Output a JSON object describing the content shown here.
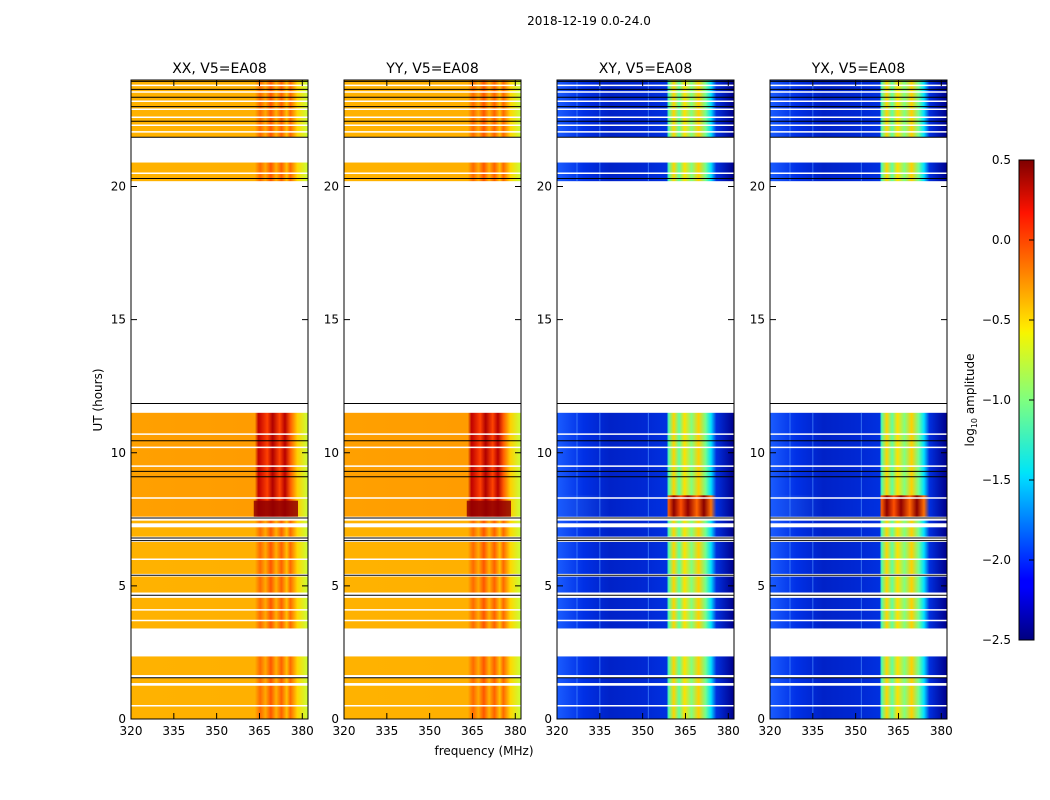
{
  "chart_data": {
    "type": "heatmap",
    "title": "2018-12-19 0.0-24.0",
    "xlabel": "frequency (MHz)",
    "ylabel": "UT (hours)",
    "xlim": [
      320,
      382
    ],
    "ylim": [
      0,
      24
    ],
    "xticks": [
      "320",
      "335",
      "350",
      "365",
      "380"
    ],
    "yticks": [
      "0",
      "5",
      "10",
      "15",
      "20"
    ],
    "panels": [
      {
        "title": "XX, V5=EA08",
        "kind": "auto"
      },
      {
        "title": "YY, V5=EA08",
        "kind": "auto"
      },
      {
        "title": "XY, V5=EA08",
        "kind": "cross"
      },
      {
        "title": "YX, V5=EA08",
        "kind": "cross"
      }
    ],
    "colorbar": {
      "label": "log10 amplitude",
      "label_base": "log",
      "label_sub": "10",
      "label_rest": " amplitude",
      "range": [
        -2.5,
        0.5
      ],
      "ticks": [
        "0.5",
        "0.0",
        "−0.5",
        "−1.0",
        "−1.5",
        "−2.0",
        "−2.5"
      ]
    },
    "data_segments_hours": [
      [
        0.0,
        1.25
      ],
      [
        1.35,
        1.55
      ],
      [
        1.65,
        2.35
      ],
      [
        3.4,
        4.55
      ],
      [
        4.75,
        5.35
      ],
      [
        5.45,
        6.65
      ],
      [
        6.85,
        7.2
      ],
      [
        7.35,
        7.45
      ],
      [
        7.6,
        11.5
      ],
      [
        20.2,
        20.9
      ],
      [
        21.85,
        24.0
      ]
    ],
    "blank_lines_hours": [
      0.5,
      3.7,
      4.1,
      6.0,
      8.3,
      9.5,
      10.2,
      10.7,
      20.5,
      22.05,
      22.3,
      22.6,
      22.9,
      23.2,
      23.55,
      23.8
    ],
    "black_lines_hours": [
      1.55,
      4.65,
      5.4,
      6.7,
      6.8,
      7.55,
      9.1,
      9.3,
      10.45,
      11.85,
      20.3,
      21.85,
      22.45,
      23.0,
      23.35,
      23.65,
      23.95
    ]
  }
}
